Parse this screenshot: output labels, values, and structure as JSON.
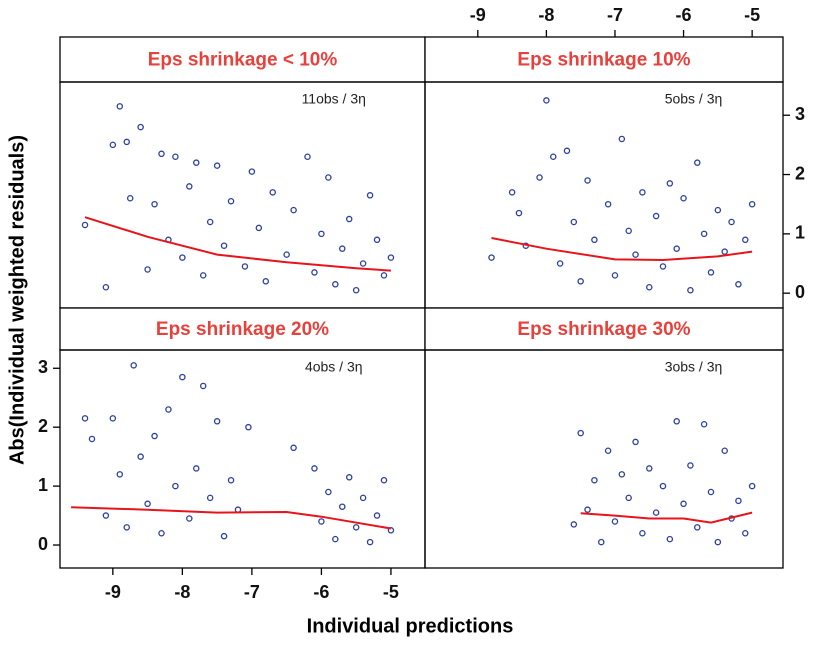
{
  "xlabel": "Individual predictions",
  "ylabel": "Abs(Individual  weighted residuals)",
  "chart_data": [
    {
      "type": "scatter",
      "title": "Eps shrinkage < 10%",
      "annotation": "11obs / 3η",
      "color": "#2b3f9e",
      "xlim": [
        -9.76,
        -4.51
      ],
      "ylim": [
        -0.25,
        3.56
      ],
      "x": [
        -9.4,
        -9.1,
        -9.0,
        -8.9,
        -8.8,
        -8.75,
        -8.6,
        -8.5,
        -8.4,
        -8.3,
        -8.2,
        -8.1,
        -8.0,
        -7.9,
        -7.8,
        -7.7,
        -7.6,
        -7.5,
        -7.4,
        -7.3,
        -7.1,
        -7.0,
        -6.9,
        -6.8,
        -6.7,
        -6.5,
        -6.4,
        -6.2,
        -6.1,
        -6.0,
        -5.9,
        -5.8,
        -5.7,
        -5.6,
        -5.5,
        -5.4,
        -5.3,
        -5.2,
        -5.1,
        -5.0
      ],
      "values": [
        1.15,
        0.1,
        2.5,
        3.15,
        2.55,
        1.6,
        2.8,
        0.4,
        1.5,
        2.35,
        0.9,
        2.3,
        0.6,
        1.8,
        2.2,
        0.3,
        1.2,
        2.15,
        0.8,
        1.55,
        0.45,
        2.05,
        1.1,
        0.2,
        1.7,
        0.65,
        1.4,
        2.3,
        0.35,
        1.0,
        1.95,
        0.15,
        0.75,
        1.25,
        0.05,
        0.5,
        1.65,
        0.9,
        0.3,
        0.6
      ],
      "smooth": {
        "color": "#e8141b",
        "x": [
          -9.4,
          -8.5,
          -7.5,
          -6.5,
          -5.5,
          -5.0
        ],
        "values": [
          1.28,
          0.95,
          0.65,
          0.52,
          0.42,
          0.38
        ]
      }
    },
    {
      "type": "scatter",
      "title": "Eps shrinkage 10%",
      "annotation": "5obs / 3η",
      "color": "#2b3f9e",
      "xlim": [
        -9.77,
        -4.55
      ],
      "ylim": [
        -0.25,
        3.56
      ],
      "xaxis": "top",
      "yaxis": "right",
      "xticks": [
        -9,
        -8,
        -7,
        -6,
        -5
      ],
      "yticks": [
        0,
        1,
        2,
        3
      ],
      "x": [
        -8.8,
        -8.5,
        -8.4,
        -8.3,
        -8.1,
        -8.0,
        -7.9,
        -7.8,
        -7.7,
        -7.6,
        -7.5,
        -7.4,
        -7.3,
        -7.1,
        -7.0,
        -6.9,
        -6.8,
        -6.7,
        -6.6,
        -6.5,
        -6.4,
        -6.3,
        -6.2,
        -6.1,
        -6.0,
        -5.9,
        -5.8,
        -5.7,
        -5.6,
        -5.5,
        -5.4,
        -5.3,
        -5.2,
        -5.1,
        -5.0
      ],
      "values": [
        0.6,
        1.7,
        1.35,
        0.8,
        1.95,
        3.25,
        2.3,
        0.5,
        2.4,
        1.2,
        0.2,
        1.9,
        0.9,
        1.5,
        0.3,
        2.6,
        1.05,
        0.65,
        1.7,
        0.1,
        1.3,
        0.45,
        1.85,
        0.75,
        1.6,
        0.05,
        2.2,
        1.0,
        0.35,
        1.4,
        0.7,
        1.2,
        0.15,
        0.9,
        1.5
      ],
      "smooth": {
        "color": "#e8141b",
        "x": [
          -8.8,
          -8.0,
          -7.0,
          -6.3,
          -5.5,
          -5.0
        ],
        "values": [
          0.93,
          0.75,
          0.57,
          0.56,
          0.62,
          0.7
        ]
      }
    },
    {
      "type": "scatter",
      "title": "Eps shrinkage 20%",
      "annotation": "4obs / 3η",
      "color": "#2b3f9e",
      "xlim": [
        -9.76,
        -4.51
      ],
      "ylim": [
        -0.39,
        3.31
      ],
      "xaxis": "bottom",
      "yaxis": "left",
      "xticks": [
        -9,
        -8,
        -7,
        -6,
        -5
      ],
      "yticks": [
        0,
        1,
        2,
        3
      ],
      "x": [
        -9.4,
        -9.3,
        -9.1,
        -9.0,
        -8.9,
        -8.8,
        -8.7,
        -8.6,
        -8.5,
        -8.4,
        -8.3,
        -8.2,
        -8.1,
        -8.0,
        -7.9,
        -7.8,
        -7.7,
        -7.6,
        -7.5,
        -7.4,
        -7.3,
        -7.2,
        -7.05,
        -6.4,
        -6.1,
        -6.0,
        -5.9,
        -5.8,
        -5.7,
        -5.6,
        -5.5,
        -5.4,
        -5.3,
        -5.2,
        -5.1,
        -5.0
      ],
      "values": [
        2.15,
        1.8,
        0.5,
        2.15,
        1.2,
        0.3,
        3.05,
        1.5,
        0.7,
        1.85,
        0.2,
        2.3,
        1.0,
        2.85,
        0.45,
        1.3,
        2.7,
        0.8,
        2.1,
        0.15,
        1.1,
        0.6,
        2.0,
        1.65,
        1.3,
        0.4,
        0.9,
        0.1,
        0.65,
        1.15,
        0.3,
        0.8,
        0.05,
        0.5,
        1.1,
        0.25
      ],
      "smooth": {
        "color": "#e8141b",
        "x": [
          -9.6,
          -8.5,
          -7.5,
          -6.5,
          -6.0,
          -5.0
        ],
        "values": [
          0.64,
          0.6,
          0.55,
          0.56,
          0.48,
          0.28
        ]
      }
    },
    {
      "type": "scatter",
      "title": "Eps shrinkage 30%",
      "annotation": "3obs / 3η",
      "color": "#2b3f9e",
      "xlim": [
        -9.77,
        -4.55
      ],
      "ylim": [
        -0.39,
        3.31
      ],
      "x": [
        -7.6,
        -7.5,
        -7.4,
        -7.3,
        -7.2,
        -7.1,
        -7.0,
        -6.9,
        -6.8,
        -6.7,
        -6.6,
        -6.5,
        -6.4,
        -6.3,
        -6.2,
        -6.1,
        -6.0,
        -5.9,
        -5.8,
        -5.7,
        -5.6,
        -5.5,
        -5.4,
        -5.3,
        -5.2,
        -5.1,
        -5.0
      ],
      "values": [
        0.35,
        1.9,
        0.6,
        1.1,
        0.05,
        1.6,
        0.4,
        1.2,
        0.8,
        1.75,
        0.2,
        1.3,
        0.55,
        1.0,
        0.1,
        2.1,
        0.7,
        1.35,
        0.3,
        2.05,
        0.9,
        0.05,
        1.6,
        0.45,
        0.75,
        0.2,
        1.0
      ],
      "smooth": {
        "color": "#e8141b",
        "x": [
          -7.5,
          -7.0,
          -6.5,
          -6.0,
          -5.6,
          -5.0
        ],
        "values": [
          0.54,
          0.5,
          0.45,
          0.45,
          0.38,
          0.55
        ]
      }
    }
  ]
}
